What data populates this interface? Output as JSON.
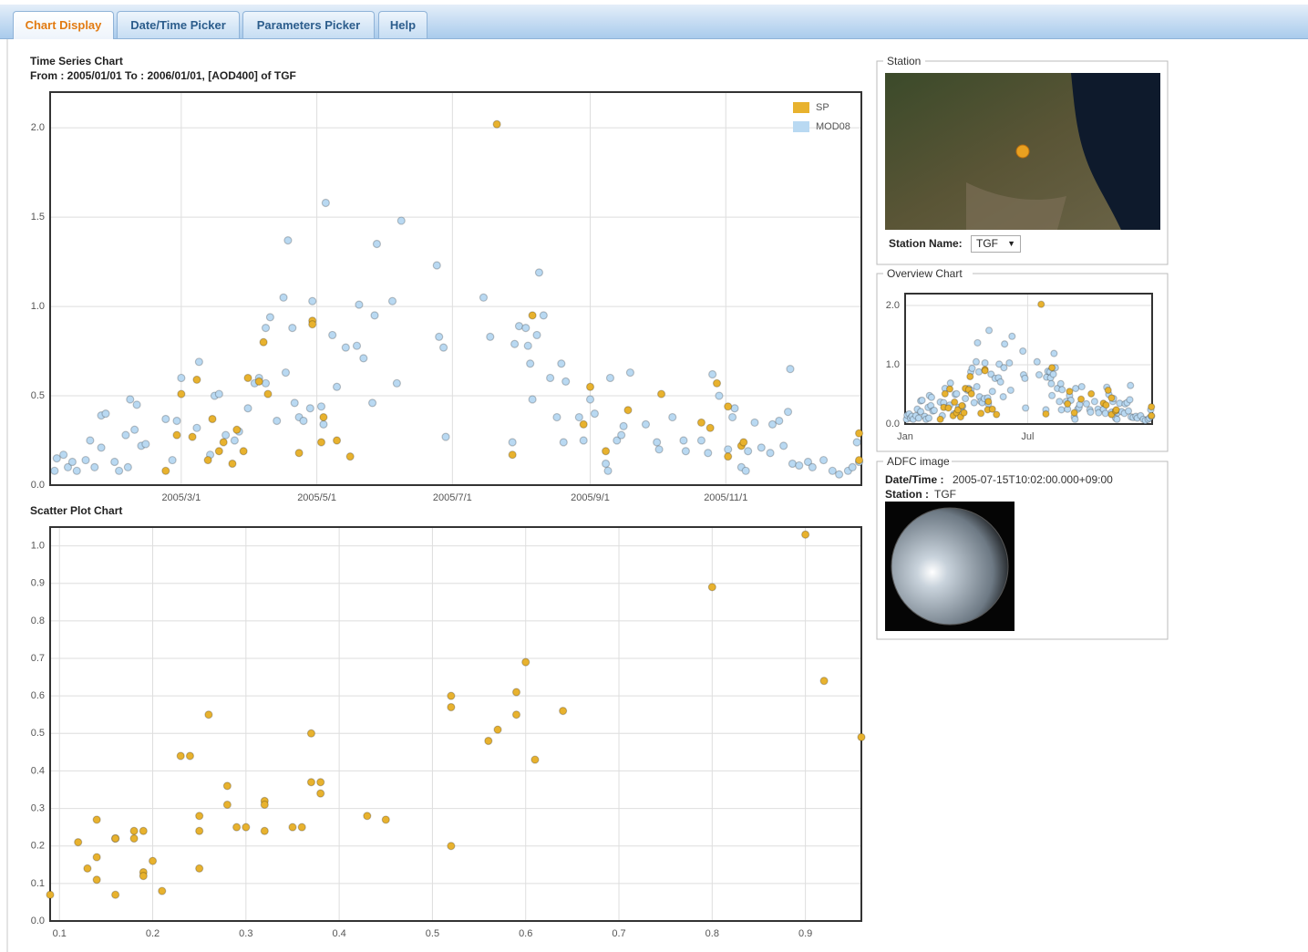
{
  "tabs": [
    "Chart Display",
    "Date/Time Picker",
    "Parameters Picker",
    "Help"
  ],
  "station": {
    "legend": "Station",
    "name_label": "Station Name:",
    "name_value": "TGF"
  },
  "overview": {
    "legend": "Overview Chart"
  },
  "adfc": {
    "legend": "ADFC image",
    "datetime_label": "Date/Time :",
    "datetime_value": "2005-07-15T10:02:00.000+09:00",
    "station_label": "Station :",
    "station_value": "TGF"
  },
  "chart_data": [
    {
      "type": "scatter",
      "title": "Time Series Chart",
      "subtitle": "From : 2005/01/01 To : 2006/01/01, [AOD400] of TGF",
      "xlim": [
        "2005/1/1",
        "2006/1/1"
      ],
      "xticks": [
        "2005/3/1",
        "2005/5/1",
        "2005/7/1",
        "2005/9/1",
        "2005/11/1"
      ],
      "ylim": [
        0,
        2.2
      ],
      "yticks": [
        {
          "value": 0,
          "label": "0.0"
        },
        0.5,
        {
          "value": 1,
          "label": "1.0"
        },
        1.5,
        {
          "value": 2,
          "label": "2.0"
        }
      ],
      "grid": true,
      "legend": "upper right",
      "series": [
        {
          "name": "SP",
          "color": "#e8b22e",
          "x": [
            "2005/2/22",
            "2005/2/27",
            "2005/3/1",
            "2005/3/6",
            "2005/3/8",
            "2005/3/13",
            "2005/3/15",
            "2005/3/18",
            "2005/3/20",
            "2005/3/24",
            "2005/3/26",
            "2005/3/29",
            "2005/3/31",
            "2005/4/5",
            "2005/4/7",
            "2005/4/9",
            "2005/4/23",
            "2005/4/29",
            "2005/4/29",
            "2005/5/3",
            "2005/5/4",
            "2005/5/10",
            "2005/5/16",
            "2005/7/21",
            "2005/7/28",
            "2005/8/6",
            "2005/8/29",
            "2005/9/1",
            "2005/9/8",
            "2005/9/18",
            "2005/10/3",
            "2005/10/21",
            "2005/10/25",
            "2005/10/28",
            "2005/11/2",
            "2005/11/2",
            "2005/11/8",
            "2005/11/9",
            "2005/12/31",
            "2005/12/31"
          ],
          "values": [
            0.08,
            0.28,
            0.51,
            0.27,
            0.59,
            0.14,
            0.37,
            0.19,
            0.24,
            0.12,
            0.31,
            0.19,
            0.6,
            0.58,
            0.8,
            0.51,
            0.18,
            0.92,
            0.9,
            0.24,
            0.38,
            0.25,
            0.16,
            2.02,
            0.17,
            0.95,
            0.34,
            0.55,
            0.19,
            0.42,
            0.51,
            0.35,
            0.32,
            0.57,
            0.16,
            0.44,
            0.22,
            0.24,
            0.14,
            0.29
          ]
        },
        {
          "name": "MOD08",
          "color": "#b9d9f2",
          "x": [
            "2005/1/3",
            "2005/1/4",
            "2005/1/7",
            "2005/1/9",
            "2005/1/11",
            "2005/1/13",
            "2005/1/17",
            "2005/1/19",
            "2005/1/21",
            "2005/1/24",
            "2005/1/26",
            "2005/1/24",
            "2005/1/30",
            "2005/2/1",
            "2005/2/4",
            "2005/2/5",
            "2005/2/6",
            "2005/2/8",
            "2005/2/9",
            "2005/2/11",
            "2005/2/13",
            "2005/2/22",
            "2005/2/25",
            "2005/2/27",
            "2005/3/1",
            "2005/3/8",
            "2005/3/9",
            "2005/3/14",
            "2005/3/16",
            "2005/3/18",
            "2005/3/21",
            "2005/3/25",
            "2005/3/27",
            "2005/3/31",
            "2005/4/3",
            "2005/4/5",
            "2005/4/8",
            "2005/4/8",
            "2005/4/10",
            "2005/4/13",
            "2005/4/16",
            "2005/4/17",
            "2005/4/18",
            "2005/4/20",
            "2005/4/21",
            "2005/4/23",
            "2005/4/25",
            "2005/4/28",
            "2005/4/29",
            "2005/5/3",
            "2005/5/4",
            "2005/5/5",
            "2005/5/8",
            "2005/5/10",
            "2005/5/14",
            "2005/5/19",
            "2005/5/20",
            "2005/5/22",
            "2005/5/26",
            "2005/5/27",
            "2005/5/28",
            "2005/6/4",
            "2005/6/6",
            "2005/6/8",
            "2005/6/24",
            "2005/6/25",
            "2005/6/27",
            "2005/6/28",
            "2005/7/15",
            "2005/7/18",
            "2005/7/28",
            "2005/7/29",
            "2005/7/31",
            "2005/8/3",
            "2005/8/4",
            "2005/8/5",
            "2005/8/6",
            "2005/8/8",
            "2005/8/9",
            "2005/8/11",
            "2005/8/14",
            "2005/8/17",
            "2005/8/19",
            "2005/8/20",
            "2005/8/21",
            "2005/8/27",
            "2005/8/29",
            "2005/9/1",
            "2005/9/3",
            "2005/9/8",
            "2005/9/9",
            "2005/9/10",
            "2005/9/13",
            "2005/9/15",
            "2005/9/16",
            "2005/9/19",
            "2005/9/26",
            "2005/10/1",
            "2005/10/2",
            "2005/10/8",
            "2005/10/13",
            "2005/10/14",
            "2005/10/21",
            "2005/10/24",
            "2005/10/26",
            "2005/10/29",
            "2005/11/2",
            "2005/11/4",
            "2005/11/5",
            "2005/11/8",
            "2005/11/10",
            "2005/11/11",
            "2005/11/14",
            "2005/11/17",
            "2005/11/21",
            "2005/11/22",
            "2005/11/25",
            "2005/11/27",
            "2005/11/29",
            "2005/11/30",
            "2005/12/1",
            "2005/12/4",
            "2005/12/8",
            "2005/12/10",
            "2005/12/15",
            "2005/12/19",
            "2005/12/22",
            "2005/12/26",
            "2005/12/28",
            "2005/12/30",
            "2005/12/31"
          ],
          "values": [
            0.08,
            0.15,
            0.17,
            0.1,
            0.13,
            0.08,
            0.14,
            0.25,
            0.1,
            0.39,
            0.4,
            0.21,
            0.13,
            0.08,
            0.28,
            0.1,
            0.48,
            0.31,
            0.45,
            0.22,
            0.23,
            0.37,
            0.14,
            0.36,
            0.6,
            0.32,
            0.69,
            0.17,
            0.5,
            0.51,
            0.28,
            0.25,
            0.3,
            0.43,
            0.57,
            0.6,
            0.57,
            0.88,
            0.94,
            0.36,
            1.05,
            0.63,
            1.37,
            0.88,
            0.46,
            0.38,
            0.36,
            0.43,
            1.03,
            0.44,
            0.34,
            1.58,
            0.84,
            0.55,
            0.77,
            0.78,
            1.01,
            0.71,
            0.46,
            0.95,
            1.35,
            1.03,
            0.57,
            1.48,
            1.23,
            0.83,
            0.77,
            0.27,
            1.05,
            0.83,
            0.24,
            0.79,
            0.89,
            0.88,
            0.78,
            0.68,
            0.48,
            0.84,
            1.19,
            0.95,
            0.6,
            0.38,
            0.68,
            0.24,
            0.58,
            0.38,
            0.25,
            0.48,
            0.4,
            0.12,
            0.08,
            0.6,
            0.25,
            0.28,
            0.33,
            0.63,
            0.34,
            0.24,
            0.2,
            0.38,
            0.25,
            0.19,
            0.25,
            0.18,
            0.62,
            0.5,
            0.2,
            0.38,
            0.43,
            0.1,
            0.08,
            0.19,
            0.35,
            0.21,
            0.18,
            0.34,
            0.36,
            0.22,
            0.41,
            0.65,
            0.12,
            0.11,
            0.13,
            0.1,
            0.14,
            0.08,
            0.06,
            0.08,
            0.1,
            0.24,
            0.13
          ]
        }
      ]
    },
    {
      "type": "scatter",
      "title": "Scatter Plot Chart",
      "xlim": [
        0.09,
        0.96
      ],
      "xticks": [
        0.1,
        0.2,
        0.3,
        0.4,
        0.5,
        0.6,
        0.7,
        0.8,
        0.9
      ],
      "ylim": [
        0,
        1.05
      ],
      "yticks": [
        {
          "value": 0,
          "label": "0.0"
        },
        0.1,
        0.2,
        0.3,
        0.4,
        0.5,
        0.6,
        0.7,
        0.8,
        0.9,
        {
          "value": 1,
          "label": "1.0"
        }
      ],
      "grid": true,
      "series": [
        {
          "color": "#e8b22e",
          "x": [
            0.09,
            0.12,
            0.13,
            0.14,
            0.14,
            0.14,
            0.16,
            0.16,
            0.16,
            0.18,
            0.18,
            0.19,
            0.19,
            0.19,
            0.2,
            0.21,
            0.23,
            0.24,
            0.25,
            0.25,
            0.25,
            0.26,
            0.28,
            0.28,
            0.29,
            0.3,
            0.32,
            0.32,
            0.32,
            0.35,
            0.36,
            0.37,
            0.37,
            0.38,
            0.38,
            0.43,
            0.45,
            0.52,
            0.52,
            0.52,
            0.56,
            0.57,
            0.59,
            0.59,
            0.6,
            0.61,
            0.64,
            0.8,
            0.9,
            0.92,
            0.96
          ],
          "values": [
            0.07,
            0.21,
            0.14,
            0.27,
            0.17,
            0.11,
            0.07,
            0.22,
            0.22,
            0.22,
            0.24,
            0.24,
            0.13,
            0.12,
            0.16,
            0.08,
            0.44,
            0.44,
            0.14,
            0.28,
            0.24,
            0.55,
            0.31,
            0.36,
            0.25,
            0.25,
            0.32,
            0.31,
            0.24,
            0.25,
            0.25,
            0.5,
            0.37,
            0.37,
            0.34,
            0.28,
            0.27,
            0.6,
            0.57,
            0.2,
            0.48,
            0.51,
            0.61,
            0.55,
            0.69,
            0.43,
            0.56,
            0.89,
            1.03,
            0.64,
            0.49
          ]
        }
      ]
    },
    {
      "type": "scatter",
      "xlim": [
        "2005/1/1",
        "2006/1/1"
      ],
      "xticks": [
        {
          "value": "2005/1/1",
          "label": "Jan"
        },
        {
          "value": "2005/7/1",
          "label": "Jul"
        }
      ],
      "ylim": [
        0,
        2.2
      ],
      "yticks": [
        {
          "value": 0,
          "label": "0.0"
        },
        {
          "value": 1,
          "label": "1.0"
        },
        {
          "value": 2,
          "label": "2.0"
        }
      ],
      "grid": true
    }
  ]
}
